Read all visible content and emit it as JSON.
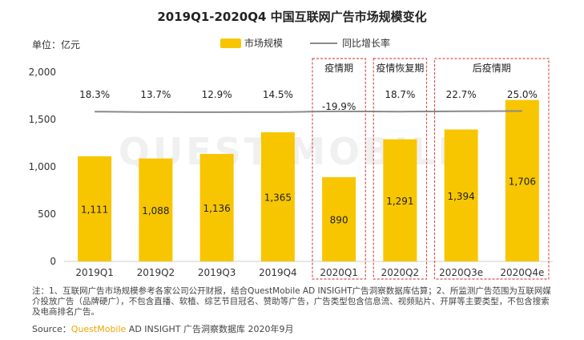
{
  "title": "2019Q1-2020Q4 中国互联网广告市场规模变化",
  "unit_label": "单位：亿元",
  "legend": {
    "bar": "市场规模",
    "line": "同比增长率"
  },
  "watermark": "QUEST MOBILE",
  "colors": {
    "bar": "#f7c600",
    "line": "#8a8a8a",
    "box": "#d9534f"
  },
  "chart_data": {
    "type": "bar",
    "title": "2019Q1-2020Q4 中国互联网广告市场规模变化",
    "ylabel": "单位：亿元",
    "ylim": [
      0,
      2000
    ],
    "yticks": [
      0,
      500,
      1000,
      1500,
      2000
    ],
    "ytick_labels": [
      "0",
      "500",
      "1,000",
      "1,500",
      "2,000"
    ],
    "categories": [
      "2019Q1",
      "2019Q2",
      "2019Q3",
      "2019Q4",
      "2020Q1",
      "2020Q2",
      "2020Q3e",
      "2020Q4e"
    ],
    "series": [
      {
        "name": "市场规模",
        "type": "bar",
        "values": [
          1111,
          1088,
          1136,
          1365,
          890,
          1291,
          1394,
          1706
        ],
        "labels": [
          "1,111",
          "1,088",
          "1,136",
          "1,365",
          "890",
          "1,291",
          "1,394",
          "1,706"
        ]
      },
      {
        "name": "同比增长率",
        "type": "line",
        "values": [
          18.3,
          13.7,
          12.9,
          14.5,
          -19.9,
          18.7,
          22.7,
          25.0
        ],
        "labels": [
          "18.3%",
          "13.7%",
          "12.9%",
          "14.5%",
          "-19.9%",
          "18.7%",
          "22.7%",
          "25.0%"
        ]
      }
    ],
    "annotations": [
      {
        "label": "疫情期",
        "categories": [
          "2020Q1"
        ]
      },
      {
        "label": "疫情恢复期",
        "categories": [
          "2020Q2"
        ]
      },
      {
        "label": "后疫情期",
        "categories": [
          "2020Q3e",
          "2020Q4e"
        ]
      }
    ]
  },
  "note": "注：1、互联网广告市场规模参考各家公司公开财报，结合QuestMobile AD INSIGHT广告洞察数据库估算；2、所监测广告范围为互联网媒介投放广告（品牌硬广），不包含直播、软植、综艺节目冠名、赞助等广告，广告类型包含信息流、视频贴片、开屏等主要类型，不包含搜索及电商排名广告。",
  "source": {
    "prefix": "Source：",
    "brand": "QuestMobile",
    "rest": " AD INSIGHT 广告洞察数据库 2020年9月"
  }
}
